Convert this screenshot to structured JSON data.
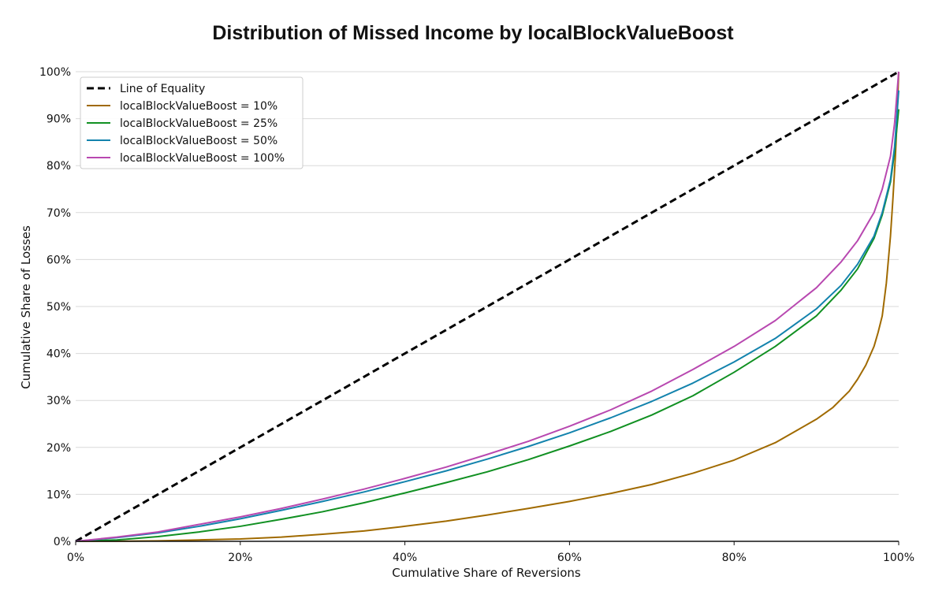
{
  "chart_data": {
    "type": "line",
    "title": "Distribution of Missed Income by localBlockValueBoost",
    "xlabel": "Cumulative Share of Reversions",
    "ylabel": "Cumulative Share of Losses",
    "xlim": [
      0,
      1
    ],
    "ylim": [
      0,
      1
    ],
    "grid": "horizontal",
    "legend_position": "upper-left",
    "x_ticks": [
      "0%",
      "20%",
      "40%",
      "60%",
      "80%",
      "100%"
    ],
    "x_tick_values": [
      0,
      0.2,
      0.4,
      0.6,
      0.8,
      1.0
    ],
    "y_ticks": [
      "0%",
      "10%",
      "20%",
      "30%",
      "40%",
      "50%",
      "60%",
      "70%",
      "80%",
      "90%",
      "100%"
    ],
    "y_tick_values": [
      0,
      0.1,
      0.2,
      0.3,
      0.4,
      0.5,
      0.6,
      0.7,
      0.8,
      0.9,
      1.0
    ],
    "series": [
      {
        "name": "Line of Equality",
        "color": "#000000",
        "style": "dashed",
        "x": [
          0,
          1
        ],
        "y": [
          0,
          1
        ]
      },
      {
        "name": "localBlockValueBoost = 10%",
        "color": "#a06a00",
        "style": "solid",
        "x": [
          0,
          0.05,
          0.1,
          0.15,
          0.2,
          0.25,
          0.3,
          0.35,
          0.4,
          0.45,
          0.5,
          0.55,
          0.6,
          0.65,
          0.7,
          0.75,
          0.8,
          0.85,
          0.88,
          0.9,
          0.92,
          0.94,
          0.95,
          0.96,
          0.97,
          0.975,
          0.98,
          0.985,
          0.99,
          0.993,
          0.996,
          0.998,
          1.0
        ],
        "y": [
          0,
          0.0003,
          0.001,
          0.003,
          0.005,
          0.009,
          0.015,
          0.022,
          0.032,
          0.043,
          0.056,
          0.07,
          0.085,
          0.102,
          0.121,
          0.145,
          0.173,
          0.21,
          0.24,
          0.26,
          0.285,
          0.32,
          0.345,
          0.375,
          0.415,
          0.445,
          0.48,
          0.55,
          0.65,
          0.73,
          0.82,
          0.9,
          1.0
        ]
      },
      {
        "name": "localBlockValueBoost = 25%",
        "color": "#119022",
        "style": "solid",
        "x": [
          0,
          0.05,
          0.1,
          0.15,
          0.2,
          0.25,
          0.3,
          0.35,
          0.4,
          0.45,
          0.5,
          0.55,
          0.6,
          0.65,
          0.7,
          0.75,
          0.8,
          0.85,
          0.9,
          0.93,
          0.95,
          0.97,
          0.98,
          0.99,
          0.995,
          1.0
        ],
        "y": [
          0,
          0.003,
          0.01,
          0.02,
          0.032,
          0.047,
          0.063,
          0.082,
          0.103,
          0.125,
          0.148,
          0.174,
          0.203,
          0.234,
          0.269,
          0.31,
          0.36,
          0.415,
          0.48,
          0.535,
          0.58,
          0.645,
          0.695,
          0.765,
          0.83,
          0.92
        ]
      },
      {
        "name": "localBlockValueBoost = 50%",
        "color": "#1383ad",
        "style": "solid",
        "x": [
          0,
          0.05,
          0.1,
          0.15,
          0.2,
          0.25,
          0.3,
          0.35,
          0.4,
          0.45,
          0.5,
          0.55,
          0.6,
          0.65,
          0.7,
          0.75,
          0.8,
          0.85,
          0.9,
          0.93,
          0.95,
          0.97,
          0.98,
          0.99,
          0.995,
          1.0
        ],
        "y": [
          0,
          0.008,
          0.018,
          0.032,
          0.048,
          0.066,
          0.085,
          0.105,
          0.127,
          0.15,
          0.175,
          0.202,
          0.231,
          0.263,
          0.298,
          0.337,
          0.382,
          0.432,
          0.495,
          0.545,
          0.59,
          0.65,
          0.7,
          0.77,
          0.84,
          0.96
        ]
      },
      {
        "name": "localBlockValueBoost = 100%",
        "color": "#b848b0",
        "style": "solid",
        "x": [
          0,
          0.05,
          0.1,
          0.15,
          0.2,
          0.25,
          0.3,
          0.35,
          0.4,
          0.45,
          0.5,
          0.55,
          0.6,
          0.65,
          0.7,
          0.75,
          0.8,
          0.85,
          0.9,
          0.93,
          0.95,
          0.97,
          0.98,
          0.99,
          0.995,
          1.0
        ],
        "y": [
          0,
          0.009,
          0.02,
          0.036,
          0.052,
          0.07,
          0.09,
          0.111,
          0.134,
          0.158,
          0.185,
          0.213,
          0.245,
          0.28,
          0.32,
          0.366,
          0.415,
          0.47,
          0.54,
          0.595,
          0.64,
          0.7,
          0.75,
          0.82,
          0.89,
          1.0
        ]
      }
    ]
  }
}
